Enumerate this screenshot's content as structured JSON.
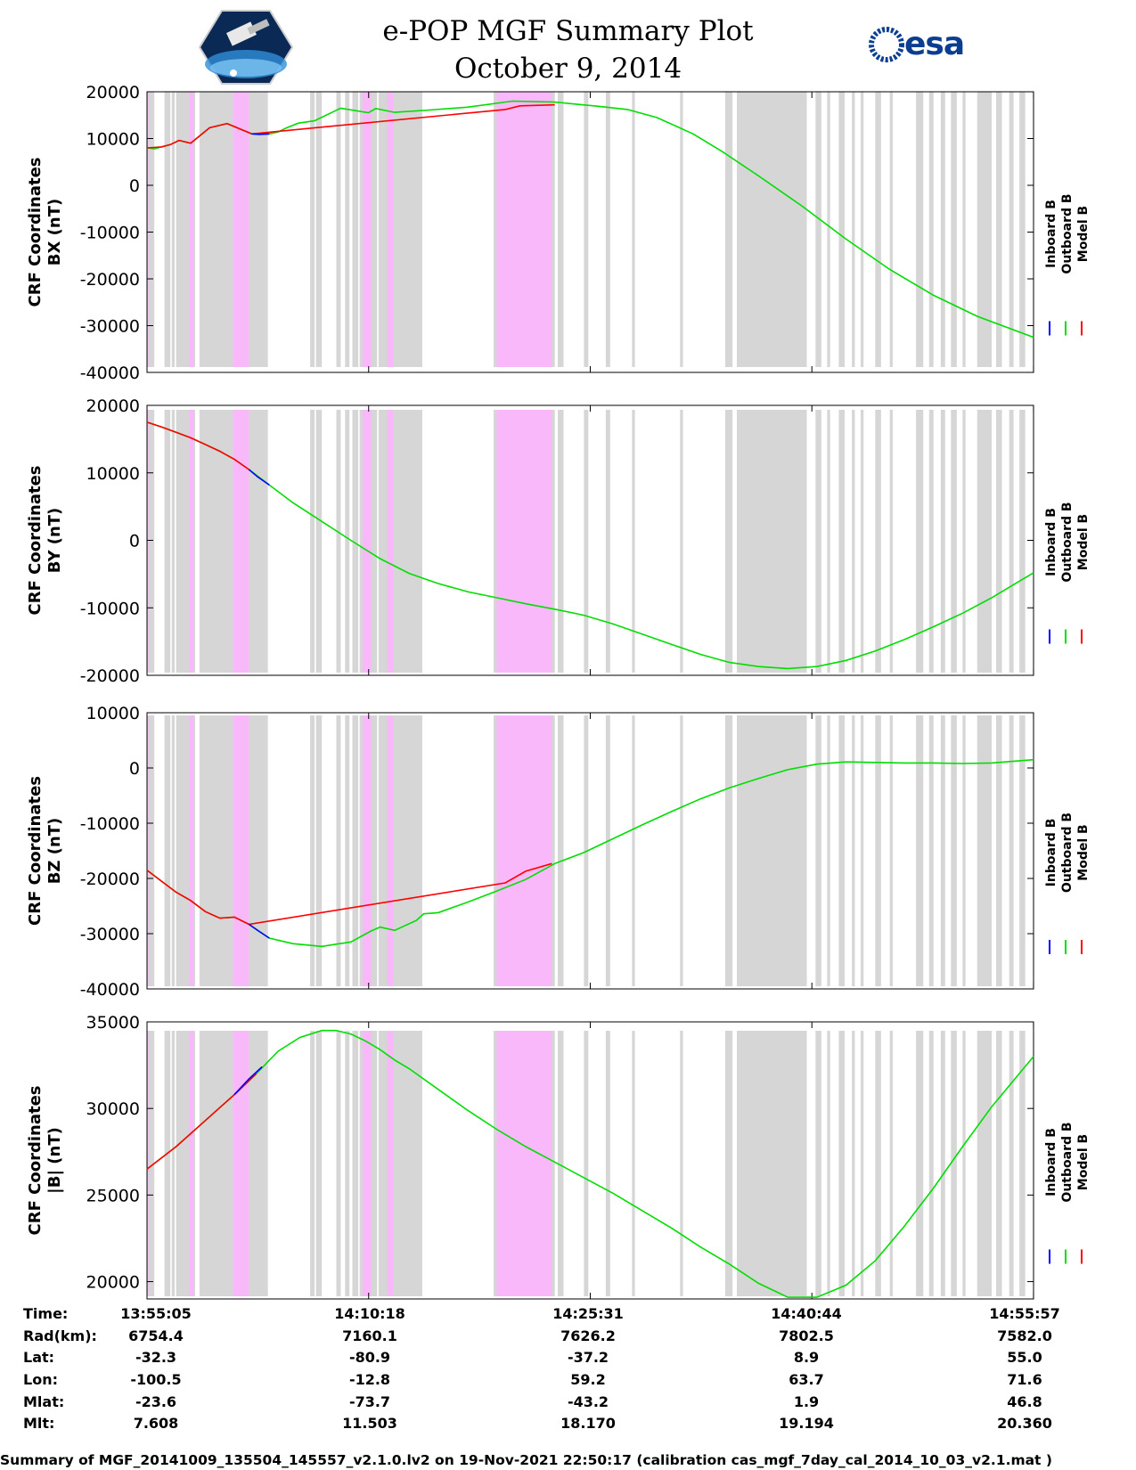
{
  "header": {
    "title": "e-POP MGF Summary Plot",
    "date": "October 9, 2014",
    "left_logo": "cassiope-mission-logo",
    "right_logo": "esa-logo",
    "right_logo_text": "esa"
  },
  "colors": {
    "inboard": "#0000ff",
    "outboard": "#00dd00",
    "model": "#ff0000",
    "gray_band": "#d6d6d6",
    "pink_band": "#f9b8f9"
  },
  "chart_data": [
    {
      "type": "line",
      "ylabel": "CRF Coordinates\nBX (nT)",
      "ylabel_lines": [
        "CRF Coordinates",
        "BX (nT)"
      ],
      "ylim": [
        -40000,
        20000
      ],
      "yticks": [
        "20000",
        "10000",
        "0",
        "-10000",
        "-20000",
        "-30000",
        "-40000"
      ],
      "ytick_values": [
        20000,
        10000,
        0,
        -10000,
        -20000,
        -30000,
        -40000
      ],
      "legend": [
        "Inboard B",
        "Outboard B",
        "Model B"
      ],
      "series": [
        {
          "name": "Outboard B",
          "x": [
            0,
            0.5,
            1,
            1.6,
            2.2,
            3.0,
            4.3,
            5.5,
            7.2,
            8.4,
            9.0,
            9.6,
            10.4,
            11.5,
            13.3,
            15.2,
            15.7,
            17.0,
            19.4,
            22.0,
            25.1,
            28.0,
            31.0,
            33.0,
            35.0,
            37.5,
            39.5,
            42.0,
            45.0,
            48.0,
            51.0,
            54.0,
            57.0,
            60.87
          ],
          "y": [
            8000,
            7800,
            8200,
            8700,
            9600,
            9000,
            12300,
            13200,
            11000,
            11000,
            11400,
            12300,
            13300,
            13800,
            16500,
            15500,
            16400,
            15600,
            16100,
            16700,
            18000,
            17800,
            16900,
            16200,
            14500,
            11000,
            7200,
            2000,
            -4500,
            -11500,
            -18000,
            -23500,
            -28000,
            -32500
          ]
        },
        {
          "name": "Model B",
          "x": [
            0,
            1,
            1.6,
            2.2,
            3.0,
            4.3,
            5.5,
            7.2,
            24.6,
            25.6,
            28.0
          ],
          "y": [
            8000,
            8200,
            8700,
            9600,
            9000,
            12300,
            13200,
            11000,
            16200,
            17000,
            17200
          ]
        },
        {
          "name": "Inboard B",
          "x": [
            7.2,
            7.7,
            8.4
          ],
          "y": [
            11000,
            10900,
            11000
          ]
        }
      ]
    },
    {
      "type": "line",
      "ylabel": "CRF Coordinates\nBY (nT)",
      "ylabel_lines": [
        "CRF Coordinates",
        "BY (nT)"
      ],
      "ylim": [
        -20000,
        20000
      ],
      "yticks": [
        "20000",
        "10000",
        "0",
        "-10000",
        "-20000"
      ],
      "ytick_values": [
        20000,
        10000,
        0,
        -10000,
        -20000
      ],
      "legend": [
        "Inboard B",
        "Outboard B",
        "Model B"
      ],
      "series": [
        {
          "name": "Outboard B",
          "x": [
            0,
            1,
            2,
            3,
            4,
            5,
            6,
            7,
            8.4,
            10,
            12,
            14,
            16,
            18,
            20,
            22,
            24,
            26,
            28,
            30,
            32,
            34,
            36,
            38,
            40,
            42,
            44,
            46,
            48,
            50,
            52,
            54,
            56,
            58,
            60.87
          ],
          "y": [
            17500,
            16800,
            16000,
            15200,
            14200,
            13200,
            12000,
            10500,
            8200,
            5600,
            2800,
            0,
            -2700,
            -4900,
            -6400,
            -7600,
            -8500,
            -9400,
            -10200,
            -11100,
            -12400,
            -13900,
            -15400,
            -16900,
            -18100,
            -18700,
            -19000,
            -18700,
            -17800,
            -16400,
            -14700,
            -12800,
            -10800,
            -8500,
            -4800
          ]
        },
        {
          "name": "Model B",
          "x": [
            0,
            1,
            2,
            3,
            4,
            5,
            6,
            7
          ],
          "y": [
            17500,
            16800,
            16000,
            15200,
            14200,
            13200,
            12000,
            10500
          ]
        },
        {
          "name": "Inboard B",
          "x": [
            7,
            7.6,
            8.4
          ],
          "y": [
            10500,
            9400,
            8200
          ]
        }
      ]
    },
    {
      "type": "line",
      "ylabel": "CRF Coordinates\nBZ (nT)",
      "ylabel_lines": [
        "CRF Coordinates",
        "BZ (nT)"
      ],
      "ylim": [
        -40000,
        10000
      ],
      "yticks": [
        "10000",
        "0",
        "-10000",
        "-20000",
        "-30000",
        "-40000"
      ],
      "ytick_values": [
        10000,
        0,
        -10000,
        -20000,
        -30000,
        -40000
      ],
      "legend": [
        "Inboard B",
        "Outboard B",
        "Model B"
      ],
      "series": [
        {
          "name": "Outboard B",
          "x": [
            0,
            1,
            2,
            3,
            4,
            5,
            6,
            7,
            8.4,
            10,
            12,
            14,
            15.4,
            16,
            17,
            18.5,
            19,
            20,
            22,
            24,
            26,
            28,
            30,
            32,
            34,
            36,
            38,
            40,
            42,
            44,
            46,
            48,
            50,
            52,
            54,
            56,
            58,
            60.87
          ],
          "y": [
            -18500,
            -20500,
            -22500,
            -24000,
            -26000,
            -27200,
            -27000,
            -28300,
            -30800,
            -31800,
            -32300,
            -31500,
            -29500,
            -28800,
            -29400,
            -27600,
            -26400,
            -26200,
            -24300,
            -22300,
            -20200,
            -17300,
            -15300,
            -12800,
            -10300,
            -7900,
            -5600,
            -3600,
            -1900,
            -300,
            700,
            1100,
            1000,
            900,
            900,
            800,
            900,
            1500
          ]
        },
        {
          "name": "Model B",
          "x": [
            0,
            1,
            2,
            3,
            4,
            5,
            6,
            7,
            24.6,
            26,
            27.8
          ],
          "y": [
            -18500,
            -20500,
            -22500,
            -24000,
            -26000,
            -27200,
            -27000,
            -28300,
            -20800,
            -18700,
            -17300
          ]
        },
        {
          "name": "Inboard B",
          "x": [
            7,
            7.7,
            8.4
          ],
          "y": [
            -28300,
            -29600,
            -30800
          ]
        }
      ]
    },
    {
      "type": "line",
      "ylabel": "CRF Coordinates\n|B| (nT)",
      "ylabel_lines": [
        "CRF Coordinates",
        "|B| (nT)"
      ],
      "ylim": [
        19000,
        35000
      ],
      "yticks": [
        "35000",
        "30000",
        "25000",
        "20000"
      ],
      "ytick_values": [
        35000,
        30000,
        25000,
        20000
      ],
      "legend": [
        "Inboard B",
        "Outboard B",
        "Model B"
      ],
      "series": [
        {
          "name": "Outboard B",
          "x": [
            0,
            2,
            4,
            6,
            7.5,
            9,
            10.5,
            12,
            13,
            14,
            15,
            16,
            17,
            18,
            20,
            22,
            24,
            26,
            28,
            30,
            32,
            34,
            36,
            38,
            40,
            42,
            44,
            46,
            48,
            50,
            52,
            54,
            56,
            58,
            60.87
          ],
          "y": [
            26500,
            27800,
            29300,
            30800,
            32000,
            33300,
            34100,
            34500,
            34500,
            34300,
            33900,
            33400,
            32800,
            32300,
            31100,
            29900,
            28800,
            27800,
            26900,
            26000,
            25100,
            24100,
            23100,
            22000,
            21000,
            19900,
            19100,
            19100,
            19800,
            21200,
            23200,
            25400,
            27800,
            30100,
            33000
          ]
        },
        {
          "name": "Model B",
          "x": [
            0,
            2,
            4,
            6,
            7.5
          ],
          "y": [
            26500,
            27800,
            29300,
            30800,
            32000
          ]
        },
        {
          "name": "Inboard B",
          "x": [
            6,
            7,
            7.9
          ],
          "y": [
            30800,
            31700,
            32400
          ]
        }
      ]
    }
  ],
  "x_axis": {
    "min": 0,
    "max": 60.87,
    "tick_positions": [
      0,
      15.217,
      30.433,
      45.65,
      60.867
    ]
  },
  "bands": {
    "gray": [
      [
        0.1,
        0.5
      ],
      [
        1.2,
        1.6
      ],
      [
        1.7,
        1.9
      ],
      [
        2.0,
        3.3
      ],
      [
        3.6,
        5.9
      ],
      [
        5.9,
        8.3
      ],
      [
        11.2,
        11.5
      ],
      [
        11.6,
        12.0
      ],
      [
        13.0,
        13.3
      ],
      [
        13.6,
        13.9
      ],
      [
        14.1,
        14.5
      ],
      [
        14.6,
        15.8
      ],
      [
        15.9,
        18.9
      ],
      [
        23.8,
        24.6
      ],
      [
        26.4,
        28.0
      ],
      [
        28.2,
        28.6
      ],
      [
        30.0,
        30.3
      ],
      [
        31.5,
        31.8
      ],
      [
        33.3,
        33.5
      ],
      [
        36.6,
        36.8
      ],
      [
        39.7,
        40.2
      ],
      [
        40.5,
        45.3
      ],
      [
        45.9,
        46.3
      ],
      [
        46.7,
        46.9
      ],
      [
        47.5,
        47.9
      ],
      [
        48.4,
        48.6
      ],
      [
        49.0,
        49.2
      ],
      [
        50.0,
        50.4
      ],
      [
        51.0,
        51.2
      ],
      [
        52.8,
        53.3
      ],
      [
        53.7,
        54.0
      ],
      [
        54.5,
        54.8
      ],
      [
        55.2,
        55.6
      ],
      [
        56.0,
        56.2
      ],
      [
        57.0,
        58.0
      ],
      [
        58.3,
        58.7
      ],
      [
        59.2,
        59.5
      ],
      [
        59.9,
        60.3
      ]
    ],
    "pink": [
      [
        0.0,
        0.1
      ],
      [
        2.9,
        3.2
      ],
      [
        5.9,
        7.0
      ],
      [
        14.8,
        15.4
      ],
      [
        16.5,
        16.9
      ],
      [
        24.0,
        27.8
      ]
    ]
  },
  "info_table": {
    "labels": [
      "Time:",
      "Rad(km):",
      "Lat:",
      "Lon:",
      "Mlat:",
      "Mlt:"
    ],
    "columns": [
      [
        "13:55:05",
        "6754.4",
        "-32.3",
        "-100.5",
        "-23.6",
        "7.608"
      ],
      [
        "14:10:18",
        "7160.1",
        "-80.9",
        "-12.8",
        "-73.7",
        "11.503"
      ],
      [
        "14:25:31",
        "7626.2",
        "-37.2",
        "59.2",
        "-43.2",
        "18.170"
      ],
      [
        "14:40:44",
        "7802.5",
        "8.9",
        "63.7",
        "1.9",
        "19.194"
      ],
      [
        "14:55:57",
        "7582.0",
        "55.0",
        "71.6",
        "46.8",
        "20.360"
      ]
    ]
  },
  "footer": "Summary of MGF_20141009_135504_145557_v2.1.0.lv2 on 19-Nov-2021 22:50:17 (calibration cas_mgf_7day_cal_2014_10_03_v2.1.mat )"
}
